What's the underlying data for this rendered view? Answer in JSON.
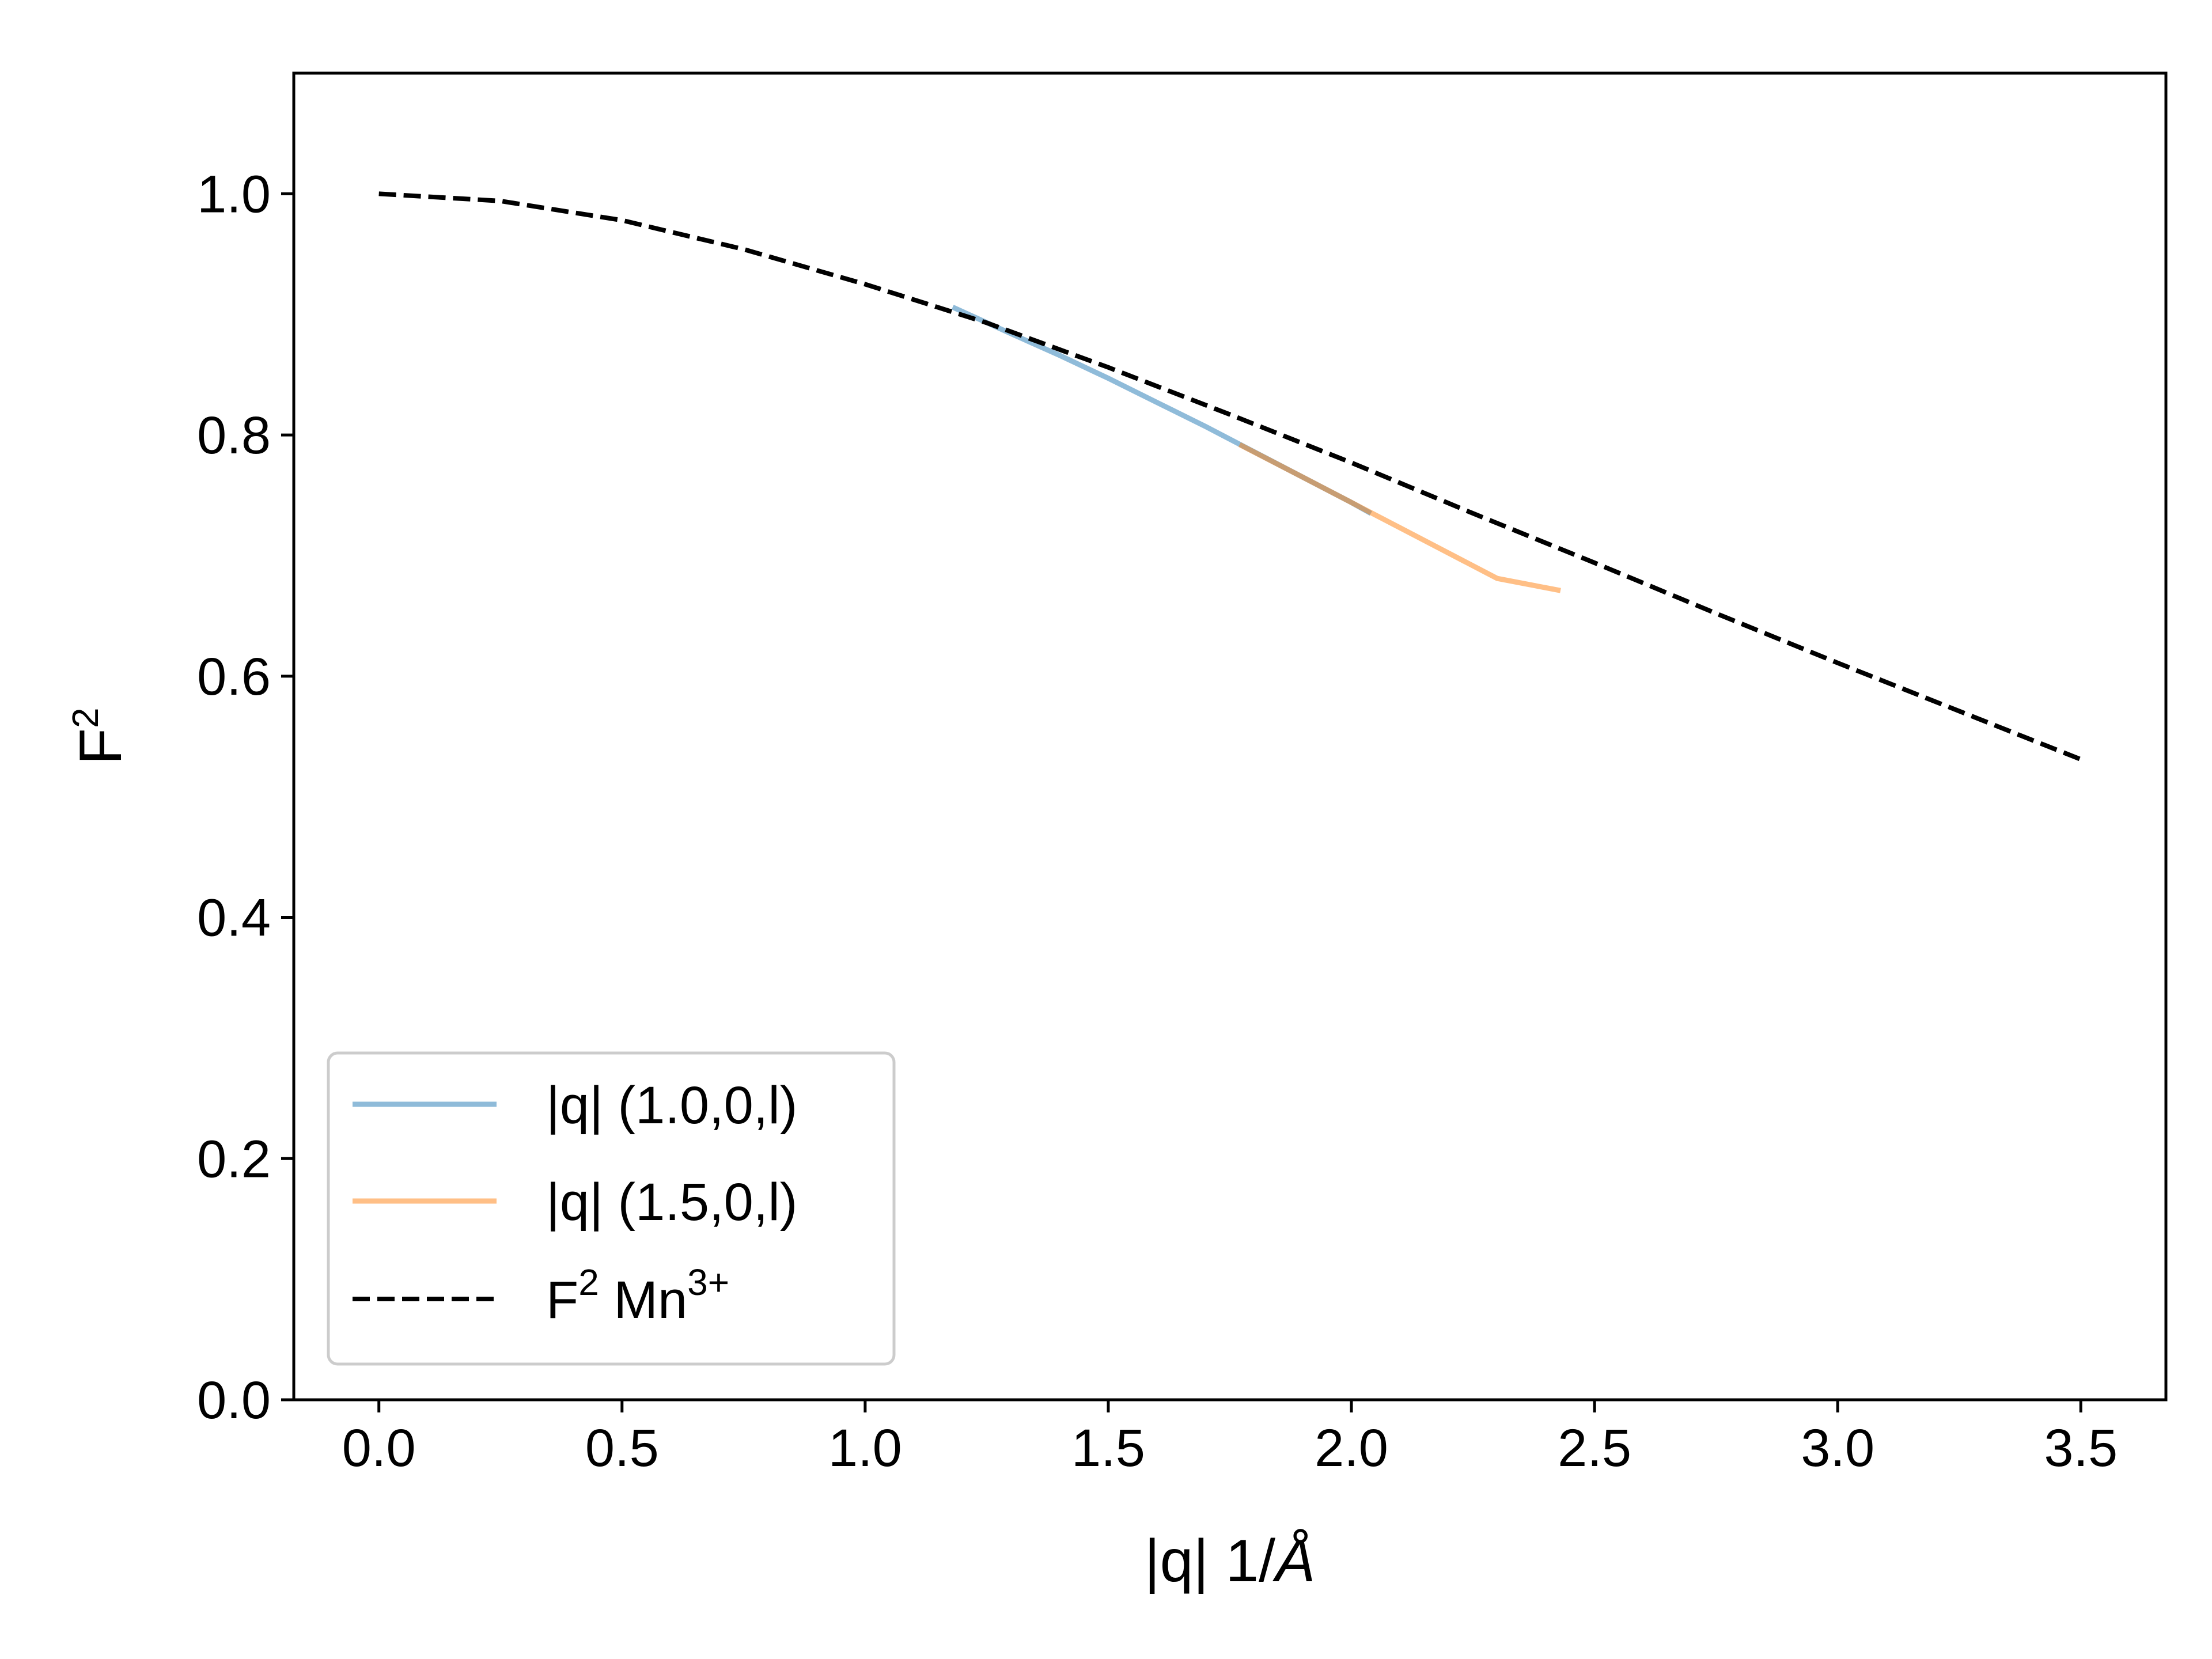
{
  "chart_data": {
    "type": "line",
    "xlabel": "|q| 1/Å",
    "xlabel_main": "|q| 1/",
    "xlabel_unit": "Å",
    "ylabel": "F²",
    "ylabel_base": "F",
    "ylabel_sup": "2",
    "xlim": [
      -0.175,
      3.675
    ],
    "ylim": [
      0.0,
      1.1
    ],
    "xticks": [
      0.0,
      0.5,
      1.0,
      1.5,
      2.0,
      2.5,
      3.0,
      3.5
    ],
    "xtick_labels": [
      "0.0",
      "0.5",
      "1.0",
      "1.5",
      "2.0",
      "2.5",
      "3.0",
      "3.5"
    ],
    "yticks": [
      0.0,
      0.2,
      0.4,
      0.6,
      0.8,
      1.0
    ],
    "ytick_labels": [
      "0.0",
      "0.2",
      "0.4",
      "0.6",
      "0.8",
      "1.0"
    ],
    "grid": false,
    "legend_position": "lower-left",
    "series": [
      {
        "name": "|q| (1.0,0,l)",
        "color": "#1f77b4",
        "alpha": 0.5,
        "style": "solid",
        "x": [
          1.18,
          1.3,
          1.4,
          1.5,
          1.6,
          1.7,
          1.8,
          1.9,
          2.0,
          2.04
        ],
        "y": [
          0.906,
          0.884,
          0.866,
          0.847,
          0.827,
          0.807,
          0.786,
          0.765,
          0.744,
          0.735
        ]
      },
      {
        "name": "|q| (1.5,0,l)",
        "color": "#ff7f0e",
        "alpha": 0.5,
        "style": "solid",
        "x": [
          1.77,
          1.9,
          2.0,
          2.1,
          2.2,
          2.3,
          2.43
        ],
        "y": [
          0.792,
          0.765,
          0.744,
          0.723,
          0.702,
          0.681,
          0.671
        ]
      },
      {
        "name": "F² Mn³⁺",
        "name_parts": [
          "F",
          "2",
          " Mn",
          "3+"
        ],
        "color": "#000000",
        "style": "dashed",
        "x": [
          0.0,
          0.25,
          0.5,
          0.75,
          1.0,
          1.25,
          1.5,
          1.75,
          2.0,
          2.25,
          2.5,
          2.75,
          3.0,
          3.25,
          3.5
        ],
        "y": [
          1.0,
          0.994,
          0.978,
          0.954,
          0.925,
          0.893,
          0.856,
          0.817,
          0.777,
          0.735,
          0.694,
          0.652,
          0.611,
          0.571,
          0.531
        ]
      }
    ]
  }
}
